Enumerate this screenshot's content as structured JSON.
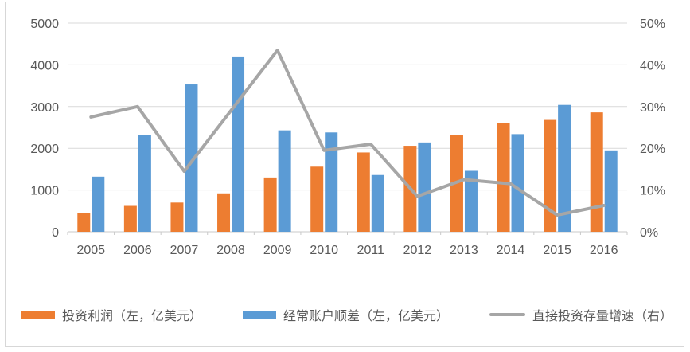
{
  "chart_data": {
    "type": "combo",
    "title": "",
    "categories": [
      "2005",
      "2006",
      "2007",
      "2008",
      "2009",
      "2010",
      "2011",
      "2012",
      "2013",
      "2014",
      "2015",
      "2016"
    ],
    "series": [
      {
        "name": "投资利润（左，亿美元）",
        "type": "bar",
        "axis": "left",
        "color": "#ED7D31",
        "values": [
          450,
          620,
          700,
          920,
          1300,
          1560,
          1900,
          2060,
          2320,
          2600,
          2680,
          2860
        ]
      },
      {
        "name": "经常账户顺差（左，亿美元）",
        "type": "bar",
        "axis": "left",
        "color": "#5B9BD5",
        "values": [
          1320,
          2320,
          3530,
          4200,
          2430,
          2380,
          1360,
          2140,
          1460,
          2340,
          3040,
          1950
        ]
      },
      {
        "name": "直接投资存量增速（右）",
        "type": "line",
        "axis": "right",
        "color": "#A6A6A6",
        "values_percent": [
          27.5,
          30,
          14.5,
          29,
          43.5,
          19.5,
          21,
          8.5,
          12.5,
          11.5,
          4,
          6.3
        ]
      }
    ],
    "left_axis": {
      "min": 0,
      "max": 5000,
      "step": 1000,
      "tick_labels": [
        "0",
        "1000",
        "2000",
        "3000",
        "4000",
        "5000"
      ]
    },
    "right_axis": {
      "min": 0,
      "max": 50,
      "step": 10,
      "unit": "%",
      "tick_labels": [
        "0%",
        "10%",
        "20%",
        "30%",
        "40%",
        "50%"
      ]
    },
    "grid": true,
    "legend_position": "bottom"
  },
  "colors": {
    "grid_line": "#D9D9D9",
    "axis_line": "#C9C9C9",
    "axis_text": "#595959",
    "bar_orange": "#ED7D31",
    "bar_blue": "#5B9BD5",
    "trend_line": "#A6A6A6",
    "frame_border": "#D7D7D7",
    "background": "#FFFFFF"
  }
}
